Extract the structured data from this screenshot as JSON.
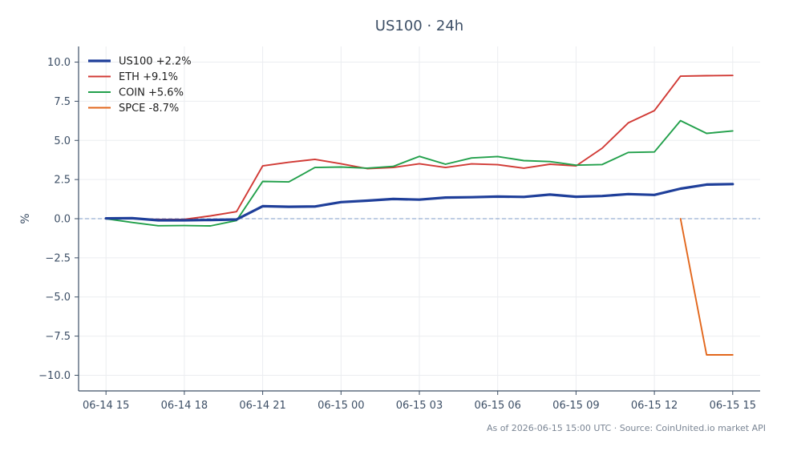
{
  "chart_data": {
    "type": "line",
    "title": "US100 · 24h",
    "xlabel": "",
    "ylabel": "%",
    "x_tick_labels": [
      "06-14 15",
      "06-14 18",
      "06-14 21",
      "06-15 00",
      "06-15 03",
      "06-15 06",
      "06-15 09",
      "06-15 12",
      "06-15 15"
    ],
    "ylim": [
      -11,
      11
    ],
    "y_ticks": [
      -10.0,
      -7.5,
      -5.0,
      -2.5,
      0.0,
      2.5,
      5.0,
      7.5,
      10.0
    ],
    "y_tick_labels": [
      "−10.0",
      "−7.5",
      "−5.0",
      "−2.5",
      "0.0",
      "2.5",
      "5.0",
      "7.5",
      "10.0"
    ],
    "x_hours": [
      0,
      1,
      2,
      3,
      4,
      5,
      6,
      7,
      8,
      9,
      10,
      11,
      12,
      13,
      14,
      15,
      16,
      17,
      18,
      19,
      20,
      21,
      22,
      23,
      24
    ],
    "xlim": [
      -1.05,
      25.05
    ],
    "grid": true,
    "reference_line": 0,
    "legend_position": "top-left",
    "footnote": "As of 2026-06-15 15:00 UTC · Source: CoinUnited.io market API",
    "series": [
      {
        "name": "US100 +2.2%",
        "color": "#1f3f9a",
        "width": 3.2,
        "x": [
          0,
          1,
          2,
          3,
          4,
          5,
          6,
          7,
          8,
          9,
          10,
          11,
          12,
          13,
          14,
          15,
          16,
          17,
          18,
          19,
          20,
          21,
          22,
          23,
          24
        ],
        "values": [
          0.02,
          0.03,
          -0.1,
          -0.1,
          -0.08,
          -0.05,
          0.8,
          0.76,
          0.78,
          1.06,
          1.15,
          1.26,
          1.22,
          1.35,
          1.37,
          1.41,
          1.39,
          1.54,
          1.4,
          1.45,
          1.57,
          1.52,
          1.92,
          2.18,
          2.21
        ]
      },
      {
        "name": "ETH +9.1%",
        "color": "#d13a35",
        "width": 1.9,
        "x": [
          0,
          1,
          2,
          3,
          4,
          5,
          6,
          7,
          8,
          9,
          10,
          11,
          12,
          13,
          14,
          15,
          16,
          17,
          18,
          19,
          20,
          21,
          22,
          23,
          24
        ],
        "values": [
          0.02,
          0.0,
          -0.05,
          -0.04,
          0.18,
          0.45,
          3.37,
          3.6,
          3.79,
          3.51,
          3.2,
          3.27,
          3.51,
          3.27,
          3.5,
          3.45,
          3.23,
          3.48,
          3.37,
          4.5,
          6.12,
          6.9,
          9.1,
          9.13,
          9.15
        ]
      },
      {
        "name": "COIN +5.6%",
        "color": "#22a04b",
        "width": 1.9,
        "x": [
          0,
          1,
          2,
          3,
          4,
          5,
          6,
          7,
          8,
          9,
          10,
          11,
          12,
          13,
          14,
          15,
          16,
          17,
          18,
          19,
          20,
          21,
          22,
          23,
          24
        ],
        "values": [
          0.0,
          -0.24,
          -0.45,
          -0.44,
          -0.46,
          -0.12,
          2.38,
          2.35,
          3.27,
          3.3,
          3.23,
          3.34,
          3.98,
          3.48,
          3.88,
          3.97,
          3.71,
          3.65,
          3.42,
          3.46,
          4.23,
          4.26,
          6.26,
          5.45,
          5.61
        ]
      },
      {
        "name": "SPCE -8.7%",
        "color": "#e2661b",
        "width": 1.9,
        "x": [
          22,
          23,
          24
        ],
        "values": [
          0.0,
          -8.7,
          -8.7
        ]
      }
    ]
  }
}
